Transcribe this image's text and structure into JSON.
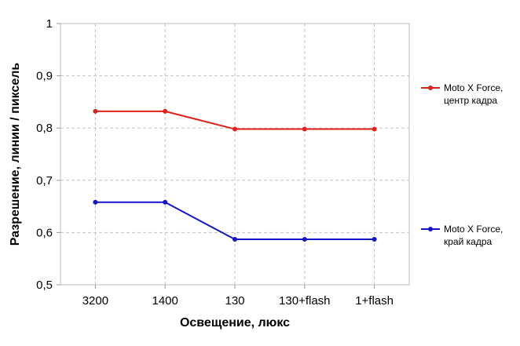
{
  "chart_data": {
    "type": "line",
    "categories": [
      "3200",
      "1400",
      "130",
      "130+flash",
      "1+flash"
    ],
    "series": [
      {
        "name_lines": [
          "Moto X Force,",
          "центр кадра"
        ],
        "color": "#e0201a",
        "values": [
          0.832,
          0.832,
          0.798,
          0.798,
          0.798
        ]
      },
      {
        "name_lines": [
          "Moto X Force,",
          "край кадра"
        ],
        "color": "#1414c8",
        "values": [
          0.658,
          0.658,
          0.587,
          0.587,
          0.587
        ]
      }
    ],
    "yticks": [
      "0,5",
      "0,6",
      "0,7",
      "0,8",
      "0,9",
      "1"
    ],
    "ylim": [
      0.5,
      1.0
    ],
    "xlabel": "Освещение,  люкс",
    "ylabel": "Разрешение,  линии / пиксель",
    "grid": true,
    "legend_position": "right"
  }
}
